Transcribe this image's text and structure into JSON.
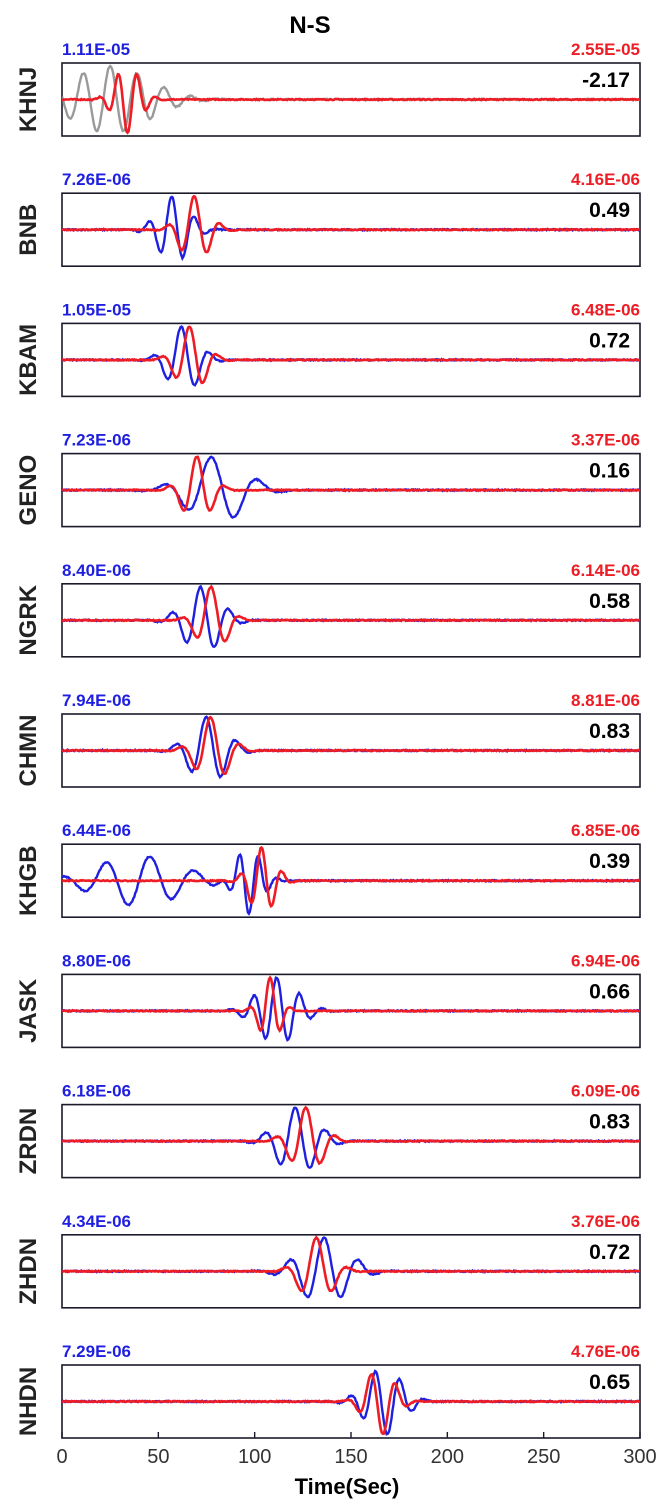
{
  "chart_data": {
    "type": "line",
    "title": "N-S",
    "xlabel": "Time(Sec)",
    "xlim": [
      0,
      300
    ],
    "xticks": [
      0,
      50,
      100,
      150,
      200,
      250,
      300
    ],
    "colors": {
      "observed": "#1f1fe0",
      "synthetic": "#ee1c24",
      "unused": "#9a9a9a",
      "frame": "#1a1a2a"
    },
    "panels": [
      {
        "station": "KHNJ",
        "obs_amp": "1.11E-05",
        "syn_amp": "2.55E-05",
        "cc": "-2.17",
        "obs_used": false,
        "obs": {
          "t0": 25,
          "period": 14,
          "decay": 28,
          "phase": 0,
          "amp": 1.0
        },
        "syn": {
          "t0": 34,
          "period": 10,
          "decay": 9,
          "phase": 3.14159,
          "amp": 1.0
        }
      },
      {
        "station": "BNB",
        "obs_amp": "7.26E-06",
        "syn_amp": "4.16E-06",
        "cc": "0.49",
        "obs_used": true,
        "obs": {
          "t0": 58,
          "period": 12,
          "decay": 11,
          "phase": 0.6,
          "amp": 1.0
        },
        "syn": {
          "t0": 69,
          "period": 14,
          "decay": 10,
          "phase": 0.2,
          "amp": 1.0
        }
      },
      {
        "station": "KBAM",
        "obs_amp": "1.05E-05",
        "syn_amp": "6.48E-06",
        "cc": "0.72",
        "obs_used": true,
        "obs": {
          "t0": 63,
          "period": 15,
          "decay": 11,
          "phase": 0.5,
          "amp": 1.0
        },
        "syn": {
          "t0": 67,
          "period": 15,
          "decay": 10,
          "phase": 0.4,
          "amp": 1.0
        }
      },
      {
        "station": "GENO",
        "obs_amp": "7.23E-06",
        "syn_amp": "3.37E-06",
        "cc": "0.16",
        "obs_used": true,
        "obs": {
          "t0": 80,
          "period": 25,
          "decay": 20,
          "phase": 0.7,
          "amp": 1.0
        },
        "syn": {
          "t0": 70,
          "period": 15,
          "decay": 10,
          "phase": 0.0,
          "amp": 1.0
        }
      },
      {
        "station": "NGRK",
        "obs_amp": "8.40E-06",
        "syn_amp": "6.14E-06",
        "cc": "0.58",
        "obs_used": true,
        "obs": {
          "t0": 73,
          "period": 15,
          "decay": 13,
          "phase": 0.5,
          "amp": 1.0
        },
        "syn": {
          "t0": 78,
          "period": 16,
          "decay": 10,
          "phase": 0.3,
          "amp": 1.0
        }
      },
      {
        "station": "CHMN",
        "obs_amp": "7.94E-06",
        "syn_amp": "8.81E-06",
        "cc": "0.83",
        "obs_used": true,
        "obs": {
          "t0": 76,
          "period": 16,
          "decay": 13,
          "phase": 0.5,
          "amp": 1.0
        },
        "syn": {
          "t0": 78,
          "period": 16,
          "decay": 11,
          "phase": 0.4,
          "amp": 1.0
        }
      },
      {
        "station": "KHGB",
        "obs_amp": "6.44E-06",
        "syn_amp": "6.85E-06",
        "cc": "0.39",
        "obs_used": true,
        "obs": {
          "t0": 97,
          "period": 10,
          "decay": 9,
          "phase": 3.14159,
          "amp": 1.0,
          "pre": {
            "t0": 40,
            "period": 23,
            "decay": 30,
            "amp": 0.75
          }
        },
        "syn": {
          "t0": 104,
          "period": 11,
          "decay": 9,
          "phase": 0.3,
          "amp": 1.0
        }
      },
      {
        "station": "JASK",
        "obs_amp": "8.80E-06",
        "syn_amp": "6.94E-06",
        "cc": "0.66",
        "obs_used": true,
        "obs": {
          "t0": 112,
          "period": 12,
          "decay": 14,
          "phase": 0.3,
          "amp": 1.0
        },
        "syn": {
          "t0": 108,
          "period": 11,
          "decay": 7,
          "phase": 0.0,
          "amp": 1.0
        }
      },
      {
        "station": "ZRDN",
        "obs_amp": "6.18E-06",
        "syn_amp": "6.09E-06",
        "cc": "0.83",
        "obs_used": true,
        "obs": {
          "t0": 122,
          "period": 16,
          "decay": 14,
          "phase": 0.4,
          "amp": 1.0
        },
        "syn": {
          "t0": 127,
          "period": 16,
          "decay": 11,
          "phase": 0.2,
          "amp": 1.0
        }
      },
      {
        "station": "ZHDN",
        "obs_amp": "4.34E-06",
        "syn_amp": "3.76E-06",
        "cc": "0.72",
        "obs_used": true,
        "obs": {
          "t0": 136,
          "period": 18,
          "decay": 17,
          "phase": 0.0,
          "amp": 1.0
        },
        "syn": {
          "t0": 132,
          "period": 17,
          "decay": 11,
          "phase": 0.0,
          "amp": 1.0
        }
      },
      {
        "station": "NHDN",
        "obs_amp": "7.29E-06",
        "syn_amp": "4.76E-06",
        "cc": "0.65",
        "obs_used": true,
        "obs": {
          "t0": 167,
          "period": 13,
          "decay": 13,
          "phase": 2.2,
          "amp": 1.0
        },
        "syn": {
          "t0": 165,
          "period": 13,
          "decay": 10,
          "phase": 2.3,
          "amp": 1.0
        }
      }
    ]
  }
}
